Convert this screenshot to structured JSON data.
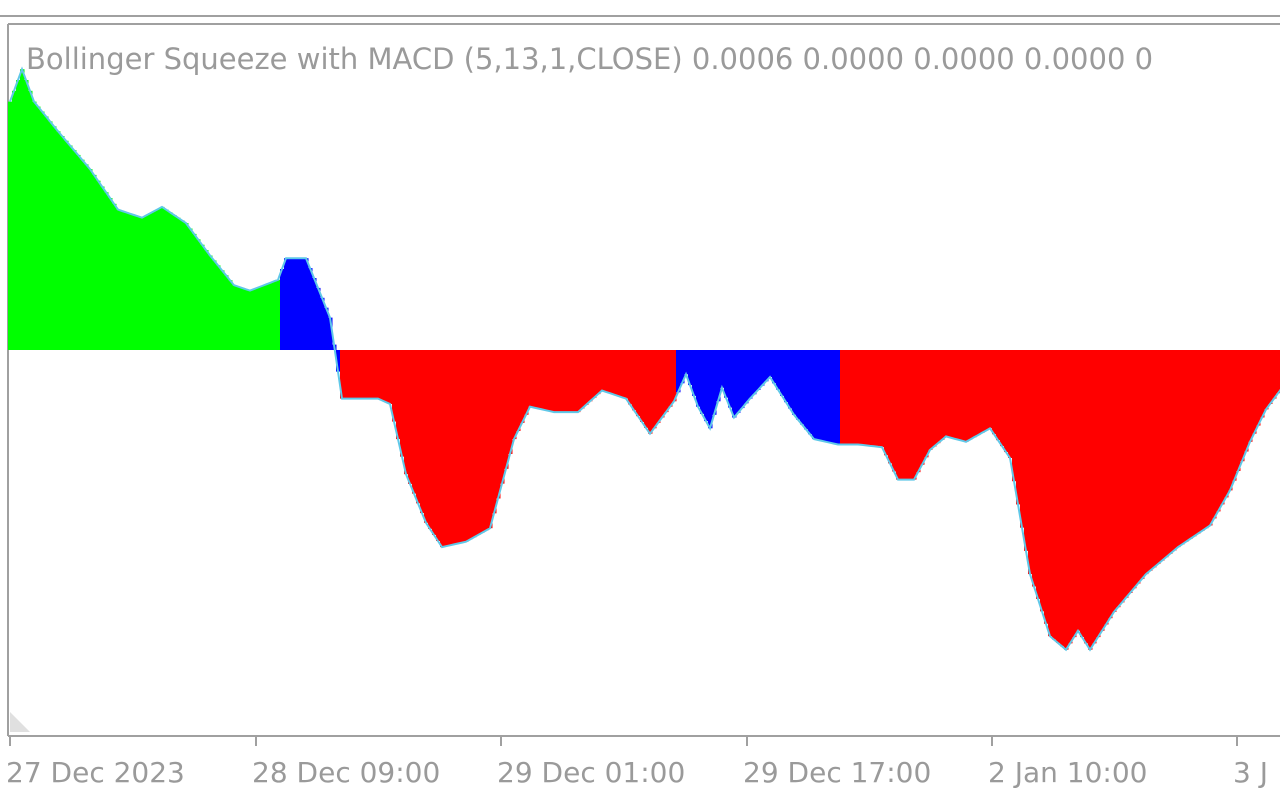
{
  "chart_data": {
    "type": "histogram",
    "title": "Bollinger Squeeze with MACD (5,13,1,CLOSE) 0.0006 0.0000 0.0000 0.0000 0",
    "x_tick_labels": [
      "27 Dec 2023",
      "28 Dec 09:00",
      "29 Dec 01:00",
      "29 Dec 17:00",
      "2 Jan 10:00",
      "3 J"
    ],
    "ylim": [
      -0.00118,
      0.00096
    ],
    "zero_level": 0,
    "grid": false,
    "legend": "none",
    "colors": {
      "positive_rising": "#00ff00",
      "positive_falling": "#0000ff",
      "negative_falling": "#ff0000",
      "negative_rising": "#0000ff",
      "signal_line": "#5fc8e8",
      "axis": "#a0a0a0",
      "text": "#9a9a9a"
    },
    "segments": [
      {
        "color": "#00ff00",
        "start": 0,
        "end": 67
      },
      {
        "color": "#0000ff",
        "start": 68,
        "end": 82
      },
      {
        "color": "#ff0000",
        "start": 83,
        "end": 166
      },
      {
        "color": "#0000ff",
        "start": 167,
        "end": 207
      },
      {
        "color": "#ff0000",
        "start": 208,
        "end": 318
      }
    ],
    "key_points": [
      [
        0,
        0.00092
      ],
      [
        3,
        0.00104
      ],
      [
        6,
        0.00092
      ],
      [
        12,
        0.00081
      ],
      [
        20,
        0.00067
      ],
      [
        27,
        0.00052
      ],
      [
        33,
        0.00049
      ],
      [
        38,
        0.00053
      ],
      [
        44,
        0.00047
      ],
      [
        50,
        0.00035
      ],
      [
        56,
        0.00024
      ],
      [
        60,
        0.00022
      ],
      [
        67,
        0.00026
      ],
      [
        69,
        0.00034
      ],
      [
        74,
        0.00034
      ],
      [
        80,
        0.00012
      ],
      [
        83,
        -0.00018
      ],
      [
        86,
        -0.00018
      ],
      [
        92,
        -0.00018
      ],
      [
        95,
        -0.0002
      ],
      [
        99,
        -0.00046
      ],
      [
        104,
        -0.00064
      ],
      [
        108,
        -0.00073
      ],
      [
        114,
        -0.00071
      ],
      [
        120,
        -0.00066
      ],
      [
        126,
        -0.00033
      ],
      [
        130,
        -0.00021
      ],
      [
        136,
        -0.00023
      ],
      [
        142,
        -0.00023
      ],
      [
        148,
        -0.00015
      ],
      [
        154,
        -0.00018
      ],
      [
        160,
        -0.00031
      ],
      [
        166,
        -0.00019
      ],
      [
        169,
        -9e-05
      ],
      [
        172,
        -0.00021
      ],
      [
        175,
        -0.00029
      ],
      [
        178,
        -0.00014
      ],
      [
        181,
        -0.00025
      ],
      [
        185,
        -0.00018
      ],
      [
        190,
        -0.0001
      ],
      [
        196,
        -0.00024
      ],
      [
        201,
        -0.00033
      ],
      [
        207,
        -0.00035
      ],
      [
        212,
        -0.00035
      ],
      [
        218,
        -0.00036
      ],
      [
        222,
        -0.00048
      ],
      [
        226,
        -0.00048
      ],
      [
        230,
        -0.00037
      ],
      [
        234,
        -0.00032
      ],
      [
        239,
        -0.00034
      ],
      [
        245,
        -0.00029
      ],
      [
        250,
        -0.0004
      ],
      [
        255,
        -0.00083
      ],
      [
        260,
        -0.00106
      ],
      [
        264,
        -0.00111
      ],
      [
        267,
        -0.00104
      ],
      [
        270,
        -0.00111
      ],
      [
        276,
        -0.00097
      ],
      [
        284,
        -0.00083
      ],
      [
        292,
        -0.00073
      ],
      [
        300,
        -0.00065
      ],
      [
        305,
        -0.00052
      ],
      [
        310,
        -0.00034
      ],
      [
        314,
        -0.00022
      ],
      [
        318,
        -0.00014
      ]
    ]
  }
}
